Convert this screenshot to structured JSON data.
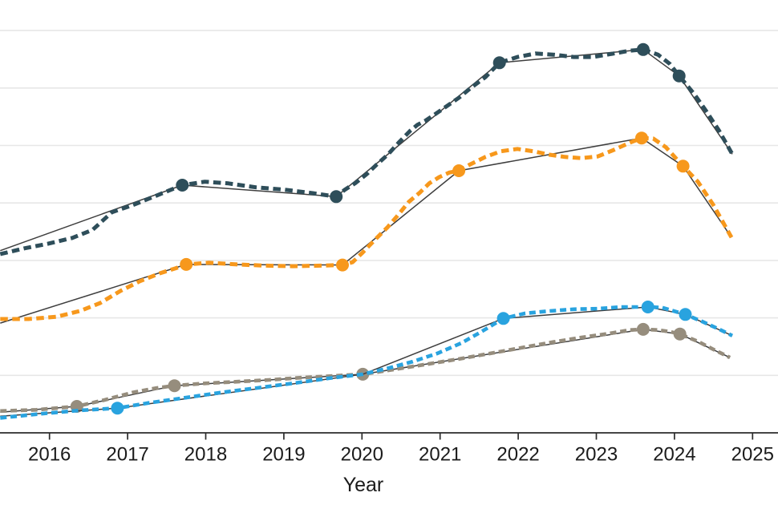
{
  "chart_data": {
    "type": "line",
    "title": "",
    "xlabel": "Year",
    "ylabel": "",
    "x_axis": {
      "tick_values": [
        2016,
        2017,
        2018,
        2019,
        2020,
        2021,
        2022,
        2023,
        2024,
        2025
      ],
      "tick_labels": [
        "2016",
        "2017",
        "2018",
        "2019",
        "2020",
        "2021",
        "2022",
        "2023",
        "2024",
        "2025"
      ],
      "range": [
        2015.37,
        2025.33
      ]
    },
    "y_axis": {
      "labels_visible": false,
      "unit": "unlabeled gridline units (1 unit per gridline above baseline)",
      "gridline_values": [
        1,
        2,
        3,
        4,
        5,
        6,
        7
      ],
      "range": [
        0,
        7.5
      ],
      "grid": "horizontal only"
    },
    "layout_hints": {
      "legend": "none visible (figure cropped)",
      "grid_color": "#E7E7E7",
      "axis_color": "#2B2B2B",
      "trend_line_color": "#3E3E3E",
      "text_color": "#1B1B1B",
      "background": "#FFFFFF",
      "line_style": "dashed reported series over thin solid trend segments with round markers"
    },
    "series": [
      {
        "id": "dark-teal",
        "name": "dark teal series (top)",
        "color": "#2E4E5A",
        "dashed_points": [
          [
            2015.37,
            3.11
          ],
          [
            2015.68,
            3.21
          ],
          [
            2015.98,
            3.29
          ],
          [
            2016.29,
            3.39
          ],
          [
            2016.55,
            3.53
          ],
          [
            2016.8,
            3.84
          ],
          [
            2017.06,
            3.96
          ],
          [
            2017.32,
            4.1
          ],
          [
            2017.52,
            4.21
          ],
          [
            2017.7,
            4.31
          ],
          [
            2017.99,
            4.37
          ],
          [
            2018.29,
            4.34
          ],
          [
            2018.65,
            4.27
          ],
          [
            2019.01,
            4.23
          ],
          [
            2019.37,
            4.17
          ],
          [
            2019.67,
            4.11
          ],
          [
            2019.78,
            4.23
          ],
          [
            2019.92,
            4.35
          ],
          [
            2020.06,
            4.5
          ],
          [
            2020.19,
            4.67
          ],
          [
            2020.33,
            4.84
          ],
          [
            2020.47,
            5.05
          ],
          [
            2020.62,
            5.26
          ],
          [
            2020.71,
            5.36
          ],
          [
            2020.81,
            5.43
          ],
          [
            2020.91,
            5.52
          ],
          [
            2021.06,
            5.66
          ],
          [
            2021.24,
            5.83
          ],
          [
            2021.4,
            6.01
          ],
          [
            2021.58,
            6.19
          ],
          [
            2021.76,
            6.44
          ],
          [
            2021.99,
            6.54
          ],
          [
            2022.22,
            6.6
          ],
          [
            2022.45,
            6.58
          ],
          [
            2022.71,
            6.54
          ],
          [
            2022.96,
            6.54
          ],
          [
            2023.22,
            6.6
          ],
          [
            2023.43,
            6.65
          ],
          [
            2023.6,
            6.67
          ],
          [
            2023.79,
            6.58
          ],
          [
            2023.94,
            6.42
          ],
          [
            2024.06,
            6.21
          ],
          [
            2024.25,
            5.9
          ],
          [
            2024.4,
            5.61
          ],
          [
            2024.57,
            5.26
          ],
          [
            2024.74,
            4.85
          ]
        ],
        "trend_points": [
          [
            2015.37,
            3.17
          ],
          [
            2017.7,
            4.31
          ],
          [
            2019.67,
            4.11
          ],
          [
            2021.76,
            6.44
          ],
          [
            2023.6,
            6.67
          ],
          [
            2024.06,
            6.21
          ],
          [
            2024.74,
            4.85
          ]
        ],
        "marker_points": [
          [
            2017.7,
            4.31
          ],
          [
            2019.67,
            4.11
          ],
          [
            2021.76,
            6.44
          ],
          [
            2023.6,
            6.67
          ],
          [
            2024.06,
            6.21
          ]
        ]
      },
      {
        "id": "orange",
        "name": "orange series (second from top)",
        "color": "#F7981C",
        "dashed_points": [
          [
            2015.37,
            1.98
          ],
          [
            2015.73,
            1.98
          ],
          [
            2016.09,
            2.02
          ],
          [
            2016.39,
            2.12
          ],
          [
            2016.65,
            2.26
          ],
          [
            2016.91,
            2.47
          ],
          [
            2017.16,
            2.64
          ],
          [
            2017.42,
            2.78
          ],
          [
            2017.61,
            2.86
          ],
          [
            2017.75,
            2.93
          ],
          [
            2018.04,
            2.96
          ],
          [
            2018.4,
            2.93
          ],
          [
            2018.76,
            2.91
          ],
          [
            2019.11,
            2.9
          ],
          [
            2019.47,
            2.91
          ],
          [
            2019.75,
            2.92
          ],
          [
            2019.88,
            2.97
          ],
          [
            2020.01,
            3.14
          ],
          [
            2020.11,
            3.28
          ],
          [
            2020.21,
            3.42
          ],
          [
            2020.33,
            3.58
          ],
          [
            2020.45,
            3.77
          ],
          [
            2020.6,
            4.02
          ],
          [
            2020.74,
            4.18
          ],
          [
            2020.86,
            4.34
          ],
          [
            2020.99,
            4.45
          ],
          [
            2021.12,
            4.53
          ],
          [
            2021.24,
            4.56
          ],
          [
            2021.37,
            4.66
          ],
          [
            2021.58,
            4.8
          ],
          [
            2021.78,
            4.9
          ],
          [
            2021.99,
            4.94
          ],
          [
            2022.19,
            4.9
          ],
          [
            2022.4,
            4.84
          ],
          [
            2022.6,
            4.8
          ],
          [
            2022.81,
            4.78
          ],
          [
            2023.02,
            4.81
          ],
          [
            2023.22,
            4.92
          ],
          [
            2023.43,
            5.05
          ],
          [
            2023.58,
            5.13
          ],
          [
            2023.73,
            5.12
          ],
          [
            2023.89,
            4.97
          ],
          [
            2024.11,
            4.64
          ],
          [
            2024.3,
            4.37
          ],
          [
            2024.5,
            3.96
          ],
          [
            2024.73,
            3.4
          ]
        ],
        "trend_points": [
          [
            2015.37,
            1.91
          ],
          [
            2017.75,
            2.93
          ],
          [
            2019.75,
            2.92
          ],
          [
            2021.24,
            4.56
          ],
          [
            2023.58,
            5.13
          ],
          [
            2024.11,
            4.64
          ],
          [
            2024.73,
            3.4
          ]
        ],
        "marker_points": [
          [
            2017.75,
            2.93
          ],
          [
            2019.75,
            2.92
          ],
          [
            2021.24,
            4.56
          ],
          [
            2023.58,
            5.13
          ],
          [
            2024.11,
            4.64
          ]
        ]
      },
      {
        "id": "taupe",
        "name": "taupe gray series (bottom)",
        "color": "#968D7D",
        "dashed_points": [
          [
            2015.37,
            0.38
          ],
          [
            2015.83,
            0.4
          ],
          [
            2016.35,
            0.46
          ],
          [
            2016.7,
            0.57
          ],
          [
            2017.06,
            0.7
          ],
          [
            2017.37,
            0.78
          ],
          [
            2017.6,
            0.82
          ],
          [
            2017.99,
            0.86
          ],
          [
            2018.4,
            0.89
          ],
          [
            2018.81,
            0.92
          ],
          [
            2019.22,
            0.96
          ],
          [
            2019.63,
            0.99
          ],
          [
            2020.01,
            1.02
          ],
          [
            2020.4,
            1.1
          ],
          [
            2020.81,
            1.19
          ],
          [
            2021.22,
            1.28
          ],
          [
            2021.63,
            1.38
          ],
          [
            2022.04,
            1.48
          ],
          [
            2022.45,
            1.58
          ],
          [
            2022.81,
            1.66
          ],
          [
            2023.17,
            1.73
          ],
          [
            2023.43,
            1.79
          ],
          [
            2023.6,
            1.8
          ],
          [
            2023.79,
            1.79
          ],
          [
            2023.94,
            1.76
          ],
          [
            2024.07,
            1.72
          ],
          [
            2024.3,
            1.59
          ],
          [
            2024.5,
            1.45
          ],
          [
            2024.71,
            1.31
          ]
        ],
        "trend_points": [
          [
            2015.37,
            0.36
          ],
          [
            2016.35,
            0.46
          ],
          [
            2017.6,
            0.82
          ],
          [
            2020.01,
            1.02
          ],
          [
            2023.6,
            1.8
          ],
          [
            2024.07,
            1.72
          ],
          [
            2024.71,
            1.31
          ]
        ],
        "marker_points": [
          [
            2016.35,
            0.46
          ],
          [
            2017.6,
            0.82
          ],
          [
            2020.01,
            1.02
          ],
          [
            2023.6,
            1.8
          ],
          [
            2024.07,
            1.72
          ]
        ]
      },
      {
        "id": "sky-blue",
        "name": "sky blue series (third from top)",
        "color": "#29A3DF",
        "dashed_points": [
          [
            2015.37,
            0.26
          ],
          [
            2015.88,
            0.33
          ],
          [
            2016.39,
            0.39
          ],
          [
            2016.87,
            0.43
          ],
          [
            2017.27,
            0.52
          ],
          [
            2017.73,
            0.61
          ],
          [
            2018.19,
            0.7
          ],
          [
            2018.65,
            0.78
          ],
          [
            2019.11,
            0.86
          ],
          [
            2019.58,
            0.95
          ],
          [
            2020.01,
            1.02
          ],
          [
            2020.35,
            1.13
          ],
          [
            2020.65,
            1.24
          ],
          [
            2020.96,
            1.38
          ],
          [
            2021.27,
            1.56
          ],
          [
            2021.53,
            1.76
          ],
          [
            2021.81,
            1.99
          ],
          [
            2022.09,
            2.08
          ],
          [
            2022.4,
            2.12
          ],
          [
            2022.71,
            2.15
          ],
          [
            2023.02,
            2.16
          ],
          [
            2023.32,
            2.19
          ],
          [
            2023.66,
            2.19
          ],
          [
            2023.84,
            2.18
          ],
          [
            2023.99,
            2.12
          ],
          [
            2024.14,
            2.06
          ],
          [
            2024.35,
            1.94
          ],
          [
            2024.56,
            1.81
          ],
          [
            2024.74,
            1.69
          ]
        ],
        "trend_points": [
          [
            2015.37,
            0.29
          ],
          [
            2016.87,
            0.43
          ],
          [
            2020.01,
            1.02
          ],
          [
            2021.81,
            1.99
          ],
          [
            2023.66,
            2.19
          ],
          [
            2024.14,
            2.06
          ],
          [
            2024.74,
            1.69
          ]
        ],
        "marker_points": [
          [
            2016.87,
            0.43
          ],
          [
            2021.81,
            1.99
          ],
          [
            2023.66,
            2.19
          ],
          [
            2024.14,
            2.06
          ]
        ]
      }
    ]
  }
}
